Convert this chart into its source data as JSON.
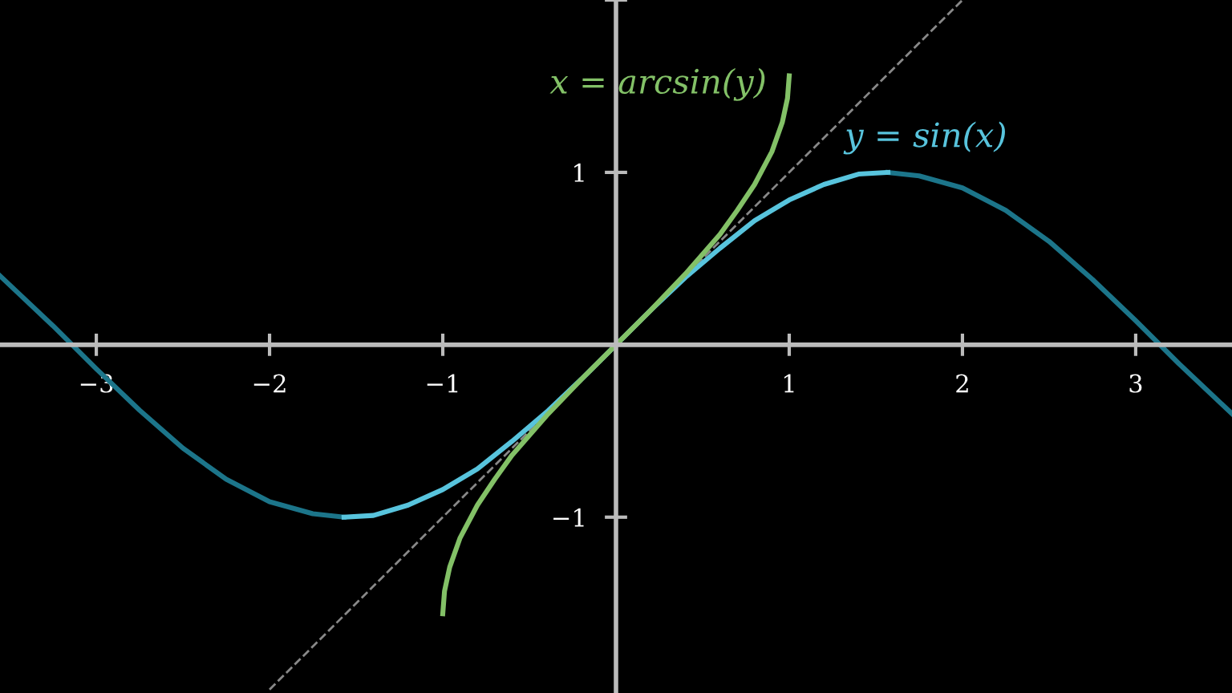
{
  "chart_data": {
    "type": "line",
    "xlim": [
      -3.556,
      3.556
    ],
    "ylim": [
      -2.02,
      2.0
    ],
    "xticks": [
      {
        "value": -3,
        "label": "−3"
      },
      {
        "value": -2,
        "label": "−2"
      },
      {
        "value": -1,
        "label": "−1"
      },
      {
        "value": 1,
        "label": "1"
      },
      {
        "value": 2,
        "label": "2"
      },
      {
        "value": 3,
        "label": "3"
      }
    ],
    "yticks": [
      {
        "value": -1,
        "label": "−1"
      },
      {
        "value": 1,
        "label": "1"
      },
      {
        "value": 2,
        "label": null
      }
    ],
    "grid": false,
    "legend": false,
    "marker": "none",
    "series": [
      {
        "color": "#888888",
        "line_style": "dashed",
        "x": [
          -2.0,
          2.0
        ],
        "values": [
          -2.0,
          2.0
        ]
      },
      {
        "color": "#1c758a",
        "x": [
          -3.556,
          -3.25,
          -3.0,
          -2.75,
          -2.5,
          -2.25,
          -2.0,
          -1.75,
          -1.57,
          0,
          1.57,
          1.75,
          2.0,
          2.25,
          2.5,
          2.75,
          3.0,
          3.25,
          3.556
        ],
        "values": [
          0.4,
          0.11,
          -0.14,
          -0.38,
          -0.6,
          -0.78,
          -0.91,
          -0.98,
          -1.0,
          null,
          1.0,
          0.98,
          0.91,
          0.78,
          0.6,
          0.38,
          0.14,
          -0.11,
          -0.4
        ]
      },
      {
        "name": "y = sin(x)",
        "color": "#58c4dd",
        "x": [
          -1.57,
          -1.4,
          -1.2,
          -1.0,
          -0.8,
          -0.6,
          -0.4,
          -0.2,
          0,
          0.2,
          0.4,
          0.6,
          0.8,
          1.0,
          1.2,
          1.4,
          1.57
        ],
        "values": [
          -1.0,
          -0.99,
          -0.93,
          -0.84,
          -0.72,
          -0.56,
          -0.39,
          -0.2,
          0,
          0.2,
          0.39,
          0.56,
          0.72,
          0.84,
          0.93,
          0.99,
          1.0
        ]
      },
      {
        "name": "x = arcsin(y)",
        "color": "#83c167",
        "x": [
          -1.0,
          -0.99,
          -0.96,
          -0.9,
          -0.8,
          -0.7,
          -0.6,
          -0.4,
          -0.2,
          0,
          0.2,
          0.4,
          0.6,
          0.7,
          0.8,
          0.9,
          0.96,
          0.99,
          1.0
        ],
        "values": [
          -1.56,
          -1.43,
          -1.29,
          -1.12,
          -0.93,
          -0.78,
          -0.64,
          -0.41,
          -0.2,
          0,
          0.2,
          0.41,
          0.64,
          0.78,
          0.93,
          1.12,
          1.29,
          1.43,
          1.56
        ]
      }
    ]
  }
}
